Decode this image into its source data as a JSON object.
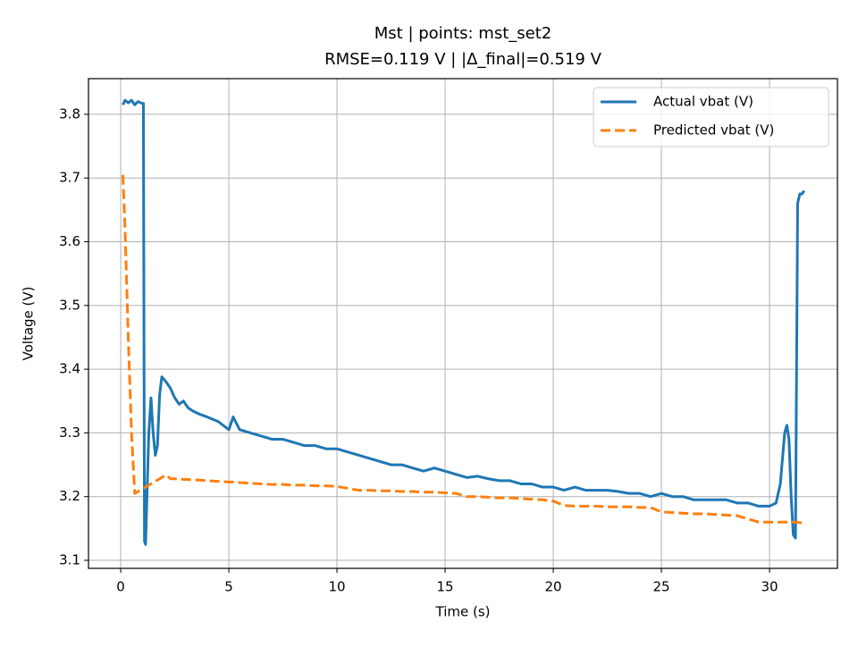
{
  "chart_data": {
    "type": "line",
    "title_lines": [
      "Mst | points: mst_set2",
      "RMSE=0.119 V | |Δ_final|=0.519 V"
    ],
    "xlabel": "Time (s)",
    "ylabel": "Voltage (V)",
    "x": [
      0.1,
      0.2,
      0.35,
      0.5,
      0.65,
      0.8,
      1.0,
      1.05,
      1.1,
      1.15,
      1.3,
      1.4,
      1.5,
      1.6,
      1.7,
      1.8,
      1.9,
      2.1,
      2.3,
      2.5,
      2.7,
      2.9,
      3.1,
      3.3,
      3.6,
      4.0,
      4.5,
      5.0,
      5.2,
      5.5,
      6.0,
      6.5,
      7.0,
      7.5,
      8.0,
      8.5,
      9.0,
      9.5,
      10.0,
      10.5,
      11.0,
      11.5,
      12.0,
      12.5,
      13.0,
      13.5,
      14.0,
      14.5,
      15.0,
      15.5,
      16.0,
      16.5,
      17.0,
      17.5,
      18.0,
      18.5,
      19.0,
      19.5,
      20.0,
      20.5,
      21.0,
      21.5,
      22.0,
      22.5,
      23.0,
      23.5,
      24.0,
      24.5,
      25.0,
      25.5,
      26.0,
      26.5,
      27.0,
      27.5,
      28.0,
      28.5,
      29.0,
      29.5,
      30.0,
      30.3,
      30.5,
      30.7,
      30.8,
      30.9,
      31.0,
      31.1,
      31.2,
      31.3,
      31.4,
      31.5,
      31.6
    ],
    "series": [
      {
        "name": "Actual vbat (V)",
        "color": "#1f77b4",
        "dashed": false,
        "values": [
          3.815,
          3.822,
          3.818,
          3.822,
          3.815,
          3.82,
          3.817,
          3.817,
          3.13,
          3.125,
          3.3,
          3.355,
          3.3,
          3.265,
          3.28,
          3.36,
          3.388,
          3.38,
          3.37,
          3.355,
          3.345,
          3.35,
          3.34,
          3.335,
          3.33,
          3.325,
          3.318,
          3.305,
          3.325,
          3.305,
          3.3,
          3.295,
          3.29,
          3.29,
          3.285,
          3.28,
          3.28,
          3.275,
          3.275,
          3.27,
          3.265,
          3.26,
          3.255,
          3.25,
          3.25,
          3.245,
          3.24,
          3.245,
          3.24,
          3.235,
          3.23,
          3.232,
          3.228,
          3.225,
          3.225,
          3.22,
          3.22,
          3.215,
          3.215,
          3.21,
          3.215,
          3.21,
          3.21,
          3.21,
          3.208,
          3.205,
          3.205,
          3.2,
          3.205,
          3.2,
          3.2,
          3.195,
          3.195,
          3.195,
          3.195,
          3.19,
          3.19,
          3.185,
          3.185,
          3.19,
          3.22,
          3.3,
          3.312,
          3.29,
          3.2,
          3.14,
          3.135,
          3.66,
          3.675,
          3.675,
          3.68
        ]
      },
      {
        "name": "Predicted vbat (V)",
        "color": "#ff7f0e",
        "dashed": true,
        "values": [
          3.705,
          3.62,
          3.45,
          3.3,
          3.205,
          3.208,
          3.212,
          3.213,
          3.214,
          3.215,
          3.218,
          3.22,
          3.222,
          3.224,
          3.226,
          3.228,
          3.23,
          3.234,
          3.228,
          3.228,
          3.228,
          3.227,
          3.227,
          3.226,
          3.226,
          3.225,
          3.224,
          3.223,
          3.223,
          3.222,
          3.221,
          3.22,
          3.219,
          3.219,
          3.218,
          3.218,
          3.217,
          3.217,
          3.216,
          3.213,
          3.21,
          3.21,
          3.209,
          3.209,
          3.208,
          3.208,
          3.207,
          3.207,
          3.206,
          3.205,
          3.2,
          3.2,
          3.199,
          3.198,
          3.198,
          3.197,
          3.196,
          3.195,
          3.193,
          3.186,
          3.185,
          3.185,
          3.185,
          3.184,
          3.184,
          3.184,
          3.183,
          3.183,
          3.176,
          3.175,
          3.174,
          3.173,
          3.173,
          3.172,
          3.171,
          3.17,
          3.165,
          3.16,
          3.16,
          3.16,
          3.16,
          3.16,
          3.16,
          3.16,
          3.16,
          3.16,
          3.16,
          3.16,
          3.159,
          3.159,
          3.159
        ]
      }
    ],
    "xlim": [
      -1.49,
      33.14
    ],
    "xticks": [
      0,
      5,
      10,
      15,
      20,
      25,
      30
    ],
    "ylim": [
      3.0874,
      3.856
    ],
    "yticks": [
      3.1,
      3.2,
      3.3,
      3.4,
      3.5,
      3.6,
      3.7,
      3.8
    ],
    "grid": true,
    "legend": "upper right"
  }
}
